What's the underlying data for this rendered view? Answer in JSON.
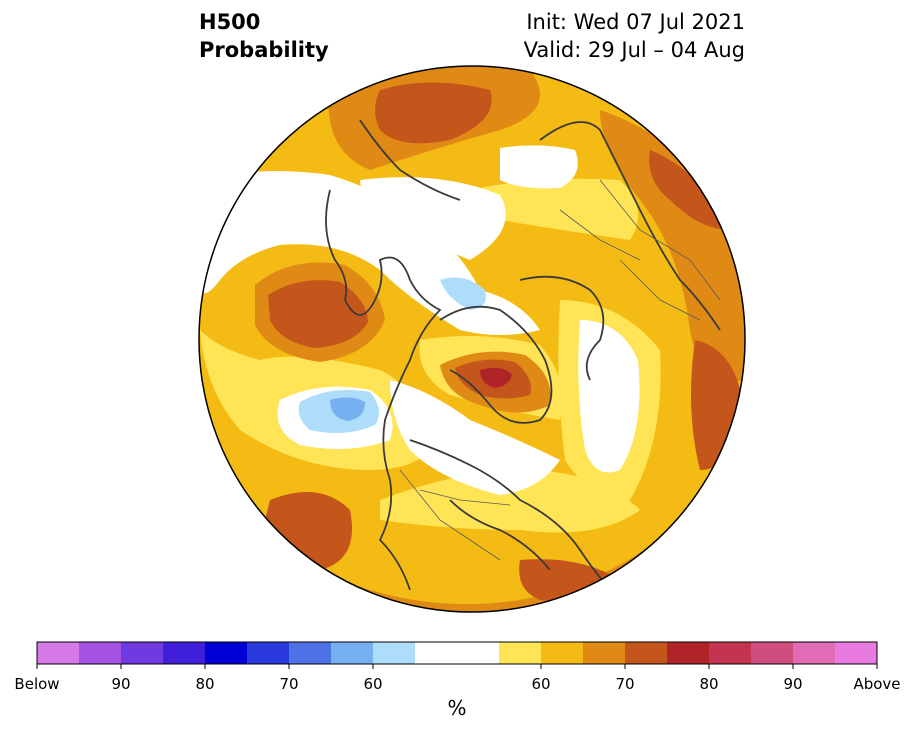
{
  "title": {
    "left_line1": "H500",
    "left_line2": "Probability",
    "right_line1": "Init: Wed 07 Jul 2021",
    "right_line2": "Valid: 29 Jul – 04 Aug"
  },
  "colorbar": {
    "units": "%",
    "colors": [
      "#d67ae8",
      "#a352e2",
      "#6f3be0",
      "#3f1fd8",
      "#0000d6",
      "#2a39dc",
      "#4e72e6",
      "#76b0f0",
      "#aedcfb",
      "#ffffff",
      "#ffffff",
      "#ffe456",
      "#f3bb13",
      "#df8a15",
      "#c5561b",
      "#ae2428",
      "#c23450",
      "#d04e7e",
      "#df6cb4",
      "#e97be0"
    ],
    "ticks": [
      {
        "label": "Below"
      },
      {
        "label": "90"
      },
      {
        "label": "80"
      },
      {
        "label": "70"
      },
      {
        "label": "60"
      },
      {
        "label": "60"
      },
      {
        "label": "70"
      },
      {
        "label": "80"
      },
      {
        "label": "90"
      },
      {
        "label": "Above"
      }
    ]
  },
  "legend_colors": {
    "white": "#ffffff",
    "light_yellow": "#ffe456",
    "yellow": "#f3bb13",
    "orange": "#df8a15",
    "dark_orange": "#c5561b",
    "red": "#ae2428",
    "light_blue": "#aedcfb",
    "blue": "#76b0f0",
    "coast": "#3a3a3a"
  }
}
